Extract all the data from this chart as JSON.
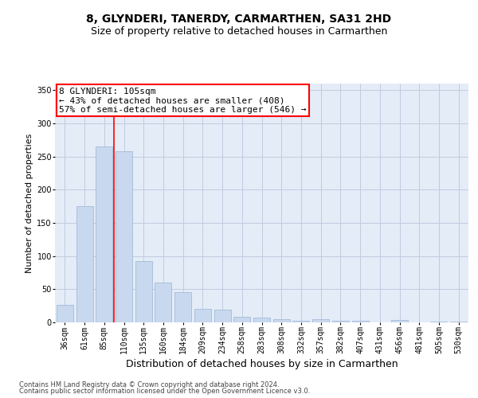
{
  "title_line1": "8, GLYNDERI, TANERDY, CARMARTHEN, SA31 2HD",
  "title_line2": "Size of property relative to detached houses in Carmarthen",
  "xlabel": "Distribution of detached houses by size in Carmarthen",
  "ylabel": "Number of detached properties",
  "bar_color": "#c8d8ee",
  "bar_edge_color": "#9ab4d4",
  "grid_color": "#c0cce0",
  "bg_color": "#e4ecf7",
  "categories": [
    "36sqm",
    "61sqm",
    "85sqm",
    "110sqm",
    "135sqm",
    "160sqm",
    "184sqm",
    "209sqm",
    "234sqm",
    "258sqm",
    "283sqm",
    "308sqm",
    "332sqm",
    "357sqm",
    "382sqm",
    "407sqm",
    "431sqm",
    "456sqm",
    "481sqm",
    "505sqm",
    "530sqm"
  ],
  "values": [
    27,
    175,
    265,
    258,
    93,
    60,
    46,
    20,
    19,
    9,
    7,
    5,
    3,
    5,
    3,
    3,
    0,
    4,
    0,
    1,
    1
  ],
  "ylim": [
    0,
    360
  ],
  "yticks": [
    0,
    50,
    100,
    150,
    200,
    250,
    300,
    350
  ],
  "vline_x": 2.5,
  "annotation_line1": "8 GLYNDERI: 105sqm",
  "annotation_line2": "← 43% of detached houses are smaller (408)",
  "annotation_line3": "57% of semi-detached houses are larger (546) →",
  "annotation_box_color": "white",
  "annotation_box_edge": "red",
  "vline_color": "red",
  "footnote1": "Contains HM Land Registry data © Crown copyright and database right 2024.",
  "footnote2": "Contains public sector information licensed under the Open Government Licence v3.0.",
  "title1_fontsize": 10,
  "title2_fontsize": 9,
  "ylabel_fontsize": 8,
  "xlabel_fontsize": 9,
  "tick_fontsize": 7,
  "annot_fontsize": 8,
  "footnote_fontsize": 6
}
